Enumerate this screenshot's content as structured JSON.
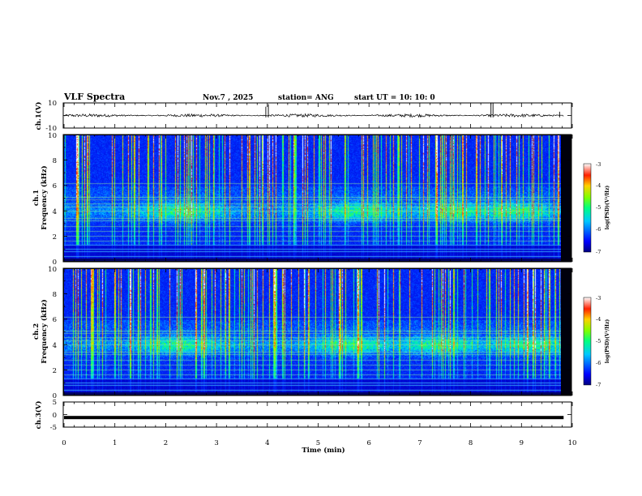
{
  "header": {
    "title": "VLF Spectra",
    "date": "Nov.7 , 2025",
    "station": "station= ANG",
    "start": "start UT = 10: 10: 0"
  },
  "chart_data": [
    {
      "type": "line",
      "name": "ch1-waveform",
      "ylabel": "ch.1(V)",
      "ylim": [
        -10,
        10
      ],
      "yticks": [
        "10",
        "-10"
      ],
      "xlim": [
        0,
        10
      ],
      "level": 0,
      "noise": 0.8,
      "spikes": [
        {
          "t": 3.97,
          "v": 7
        },
        {
          "t": 4.02,
          "v": 9
        },
        {
          "t": 8.4,
          "v": 10
        },
        {
          "t": 8.44,
          "v": 10
        },
        {
          "t": 9.75,
          "v": 3
        }
      ]
    },
    {
      "type": "heatmap",
      "name": "ch1-spectrogram",
      "ylabel_top": "ch.1",
      "ylabel": "Frequency (kHz)",
      "ylim": [
        0,
        10
      ],
      "yticks": [
        "0",
        "2",
        "4",
        "6",
        "8",
        "10"
      ],
      "xlim": [
        0,
        9.83
      ],
      "noise_band_khz": [
        3.0,
        5.0
      ],
      "noise_band_peak_min": [
        2.3,
        5.8,
        7.8,
        8.9
      ],
      "tone_lines_khz": [
        0.4,
        0.8,
        1.0,
        1.3,
        1.6,
        2.0,
        2.4,
        2.8,
        3.2,
        3.4,
        4.0,
        4.3,
        4.6,
        4.9,
        5.1,
        6.2
      ]
    },
    {
      "type": "heatmap",
      "name": "ch2-spectrogram",
      "ylabel_top": "ch.2",
      "ylabel": "Frequency (kHz)",
      "ylim": [
        0,
        10
      ],
      "yticks": [
        "0",
        "2",
        "4",
        "6",
        "8",
        "10"
      ],
      "xlim": [
        0,
        9.83
      ],
      "noise_band_khz": [
        3.0,
        5.0
      ],
      "noise_band_peak_min": [
        2.3,
        5.7,
        7.4,
        9.2
      ],
      "tone_lines_khz": [
        0.4,
        0.8,
        1.0,
        1.3,
        1.6,
        2.0,
        2.4,
        2.8,
        3.2,
        3.4,
        4.0,
        4.3,
        4.6,
        4.9,
        5.1,
        6.2
      ]
    },
    {
      "type": "line",
      "name": "ch3-waveform",
      "ylabel": "ch.3(V)",
      "ylim": [
        -5,
        5
      ],
      "yticks": [
        "5",
        "0",
        "-5"
      ],
      "xlim": [
        0,
        10
      ],
      "level": -1.2,
      "noise": 0,
      "spikes": []
    }
  ],
  "colorbar": {
    "label": "log(PSD)(V²/Hz)",
    "ticks": [
      "-3",
      "-4",
      "-5",
      "-6",
      "-7"
    ],
    "range": [
      -7,
      -3
    ]
  },
  "x_axis": {
    "label": "Time (min)",
    "ticks": [
      "0",
      "1",
      "2",
      "3",
      "4",
      "5",
      "6",
      "7",
      "8",
      "9",
      "10"
    ],
    "range": [
      0,
      10
    ]
  }
}
